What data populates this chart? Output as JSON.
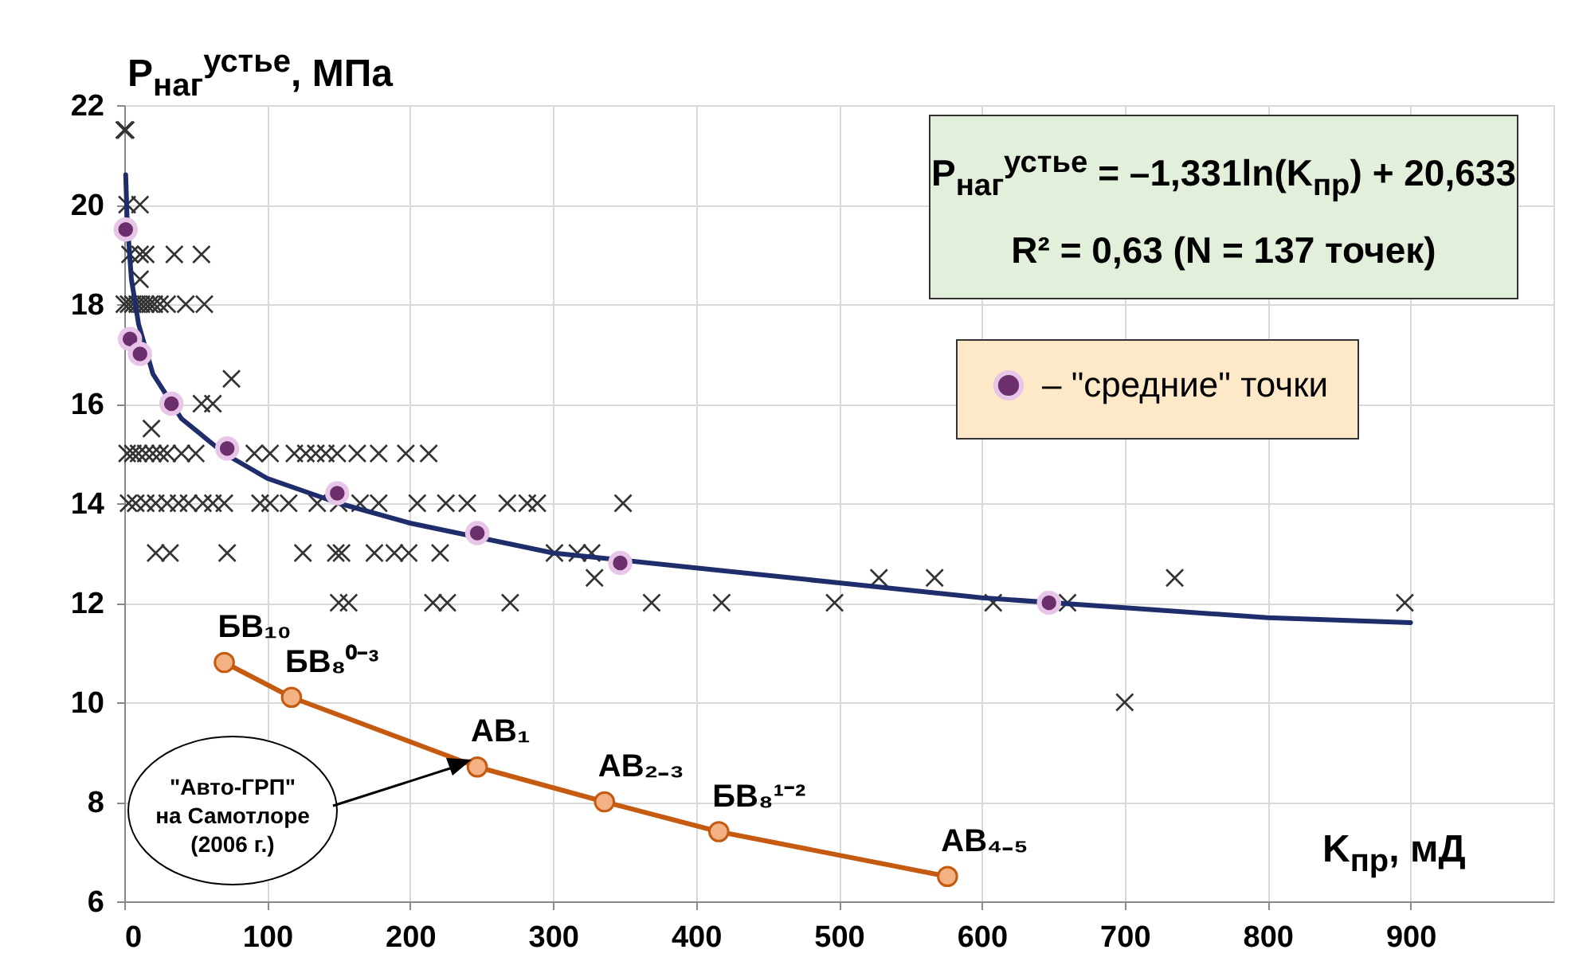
{
  "chart_data": {
    "type": "scatter",
    "xlabel": "K$_{пр}$, мД",
    "ylabel": "P$_{наг}$$^{устье}$, МПа",
    "xlim": [
      0,
      1000
    ],
    "ylim": [
      6,
      22
    ],
    "xticks": [
      0,
      100,
      200,
      300,
      400,
      500,
      600,
      700,
      800,
      900
    ],
    "yticks": [
      6,
      8,
      10,
      12,
      14,
      16,
      18,
      20,
      22
    ],
    "grid": true,
    "legend": "top right",
    "series": [
      {
        "type": "scatter",
        "marker": "cross",
        "color": "#333333",
        "x": [
          0,
          1,
          2,
          11,
          4,
          11,
          15,
          35,
          54,
          11,
          0,
          3,
          6,
          9,
          12,
          15,
          18,
          21,
          25,
          30,
          43,
          56,
          75,
          54,
          62,
          19,
          2,
          6,
          10,
          15,
          20,
          25,
          30,
          40,
          50,
          91,
          102,
          119,
          127,
          134,
          141,
          149,
          163,
          178,
          197,
          213,
          3,
          8,
          15,
          22,
          30,
          38,
          45,
          55,
          62,
          70,
          95,
          102,
          115,
          135,
          150,
          165,
          178,
          205,
          225,
          240,
          268,
          282,
          289,
          349,
          22,
          32,
          72,
          125,
          148,
          152,
          175,
          189,
          199,
          221,
          301,
          317,
          327,
          329,
          528,
          567,
          735,
          150,
          157,
          216,
          226,
          270,
          369,
          418,
          497,
          608,
          660,
          896,
          700
        ],
        "values": [
          21.5,
          21.5,
          20,
          20,
          19,
          19,
          19,
          19,
          19,
          18.5,
          18,
          18,
          18,
          18,
          18,
          18,
          18,
          18,
          18,
          18,
          18,
          18,
          16.5,
          16,
          16,
          15.5,
          15,
          15,
          15,
          15,
          15,
          15,
          15,
          15,
          15,
          15,
          15,
          15,
          15,
          15,
          15,
          15,
          15,
          15,
          15,
          15,
          14,
          14,
          14,
          14,
          14,
          14,
          14,
          14,
          14,
          14,
          14,
          14,
          14,
          14,
          14,
          14,
          14,
          14,
          14,
          14,
          14,
          14,
          14,
          14,
          13,
          13,
          13,
          13,
          13,
          13,
          13,
          13,
          13,
          13,
          13,
          13,
          13,
          12.5,
          12.5,
          12.5,
          12.5,
          12,
          12,
          12,
          12,
          12,
          12,
          12,
          12,
          12,
          12,
          12,
          10
        ]
      },
      {
        "type": "line",
        "marker": "none",
        "line_style": "solid",
        "color": "#1f2d6b",
        "x": [
          1,
          2,
          5,
          10,
          20,
          40,
          70,
          100,
          150,
          200,
          300,
          400,
          500,
          600,
          700,
          800,
          900
        ],
        "values": [
          20.6,
          19.7,
          18.5,
          17.6,
          16.6,
          15.7,
          15,
          14.5,
          14,
          13.6,
          13,
          12.7,
          12.4,
          12.1,
          11.9,
          11.7,
          11.6
        ]
      },
      {
        "type": "line",
        "marker": "circle",
        "line_style": "solid",
        "color": "#c55a11",
        "x": [
          70,
          117,
          247,
          336,
          416,
          576
        ],
        "values": [
          10.8,
          10.1,
          8.7,
          8,
          7.4,
          6.5
        ]
      },
      {
        "type": "scatter",
        "marker": "circle",
        "name": "– \"средние\" точки",
        "color": "#6b2f6e",
        "x": [
          1,
          4,
          7,
          11,
          33,
          72,
          149,
          247,
          347,
          647
        ],
        "values": [
          19.5,
          17.3,
          null,
          17,
          16,
          15.1,
          14.2,
          13.4,
          12.8,
          12
        ]
      }
    ],
    "annotations": [
      "P$_{наг}$$^{устье}$ = –1,331ln(K$_{пр}$) + 20,633",
      "R² = 0,63   (N = 137 точек)",
      "\"Авто-ГРП\" на Самотлоре (2006 г.)",
      {
        "text": "БВ₁₀",
        "x": 70,
        "y": 10.8
      },
      {
        "text": "БВ₈⁰⁻³",
        "x": 117,
        "y": 10.1
      },
      {
        "text": "АВ₁",
        "x": 247,
        "y": 8.7
      },
      {
        "text": "АВ₂₋₃",
        "x": 336,
        "y": 8
      },
      {
        "text": "БВ₈¹⁻²",
        "x": 416,
        "y": 7.4
      },
      {
        "text": "АВ₄₋₅",
        "x": 576,
        "y": 6.5
      }
    ]
  }
}
